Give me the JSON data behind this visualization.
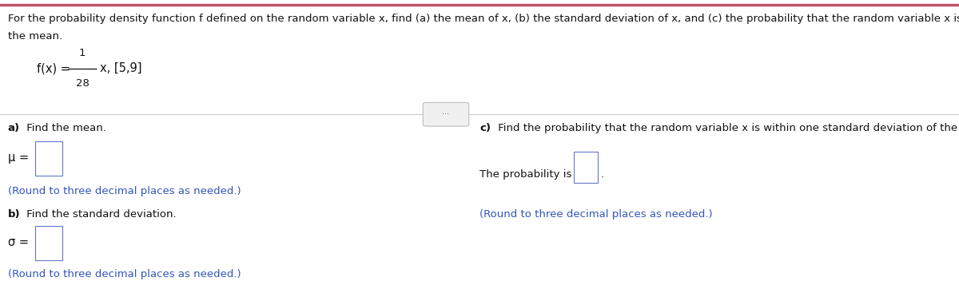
{
  "header_line1": "For the probability density function f defined on the random variable x, find (a) the mean of x, (b) the standard deviation of x, and (c) the probability that the random variable x is within one standard deviation of",
  "header_line2": "the mean.",
  "formula_fx": "f(x) = ",
  "formula_num": "1",
  "formula_den": "28",
  "formula_rest": "x, [5,9]",
  "part_a_bold": "a)",
  "part_a_text": " Find the mean.",
  "mu_label": "μ = ",
  "part_a_note": "(Round to three decimal places as needed.)",
  "part_b_bold": "b)",
  "part_b_text": " Find the standard deviation.",
  "sigma_label": "σ = ",
  "part_b_note": "(Round to three decimal places as needed.)",
  "part_c_bold": "c)",
  "part_c_text": " Find the probability that the random variable x is within one standard deviation of the mean.",
  "part_c_line1": "The probability is",
  "part_c_period": ".",
  "part_c_note": "(Round to three decimal places as needed.)",
  "note_color": "#3355bb",
  "box_edge_color": "#6677cc",
  "text_color": "#111111",
  "bg_color": "#ffffff",
  "divider_color": "#cccccc",
  "dots_color": "#cccccc",
  "fs": 9.5,
  "fs_formula": 10.5
}
